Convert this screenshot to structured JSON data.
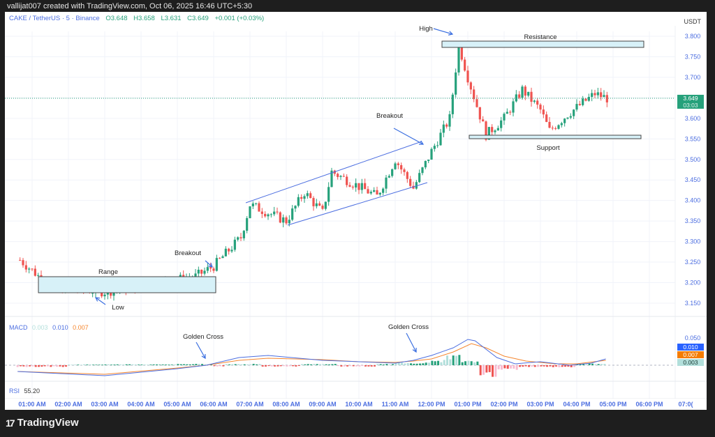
{
  "header": {
    "credit": "vallijat007 created with TradingView.com, Oct 06, 2025 16:46 UTC+5:30"
  },
  "symbol_legend": {
    "symbol": "CAKE / TetherUS · 5 · Binance",
    "open": "O3.648",
    "high": "H3.658",
    "low": "L3.631",
    "close": "C3.649",
    "change": "+0.001 (+0.03%)"
  },
  "price_axis": {
    "unit": "USDT",
    "labels": [
      "3.800",
      "3.750",
      "3.700",
      "3.650",
      "3.600",
      "3.550",
      "3.500",
      "3.450",
      "3.400",
      "3.350",
      "3.300",
      "3.250",
      "3.200",
      "3.150"
    ],
    "current_price": "3.649",
    "countdown": "03:03"
  },
  "macd": {
    "label": "MACD",
    "histogram": "0.003",
    "macd_value": "0.010",
    "signal_value": "0.007",
    "axis_label": "0.050",
    "tags": {
      "macd": "0.010",
      "signal": "0.007",
      "hist": "0.003"
    }
  },
  "rsi": {
    "label": "RSI",
    "value": "55.20"
  },
  "time_axis": [
    "01:00 AM",
    "02:00 AM",
    "03:00 AM",
    "04:00 AM",
    "05:00 AM",
    "06:00 AM",
    "07:00 AM",
    "08:00 AM",
    "09:00 AM",
    "10:00 AM",
    "11:00 AM",
    "12:00 PM",
    "01:00 PM",
    "02:00 PM",
    "03:00 PM",
    "04:00 PM",
    "05:00 PM",
    "06:00 PM",
    "07:0("
  ],
  "annotations": {
    "range": "Range",
    "low": "Low",
    "breakout_1": "Breakout",
    "breakout_2": "Breakout",
    "high": "High",
    "resistance": "Resistance",
    "support": "Support",
    "golden_cross_1": "Golden Cross",
    "golden_cross_2": "Golden Cross"
  },
  "brand": {
    "name": "TradingView",
    "logo": "17"
  },
  "colors": {
    "up": "#26a17b",
    "down": "#ef5350",
    "macd": "#4c6ee0",
    "signal": "#f5862e",
    "zone": "#d7f1f8"
  },
  "chart_data": {
    "type": "candlestick",
    "title": "CAKE / TetherUS · 5 · Binance",
    "ylabel": "USDT",
    "ylim": [
      3.13,
      3.82
    ],
    "x_ticks": [
      "01:00 AM",
      "02:00 AM",
      "03:00 AM",
      "04:00 AM",
      "05:00 AM",
      "06:00 AM",
      "07:00 AM",
      "08:00 AM",
      "09:00 AM",
      "10:00 AM",
      "11:00 AM",
      "12:00 PM",
      "01:00 PM",
      "02:00 PM",
      "03:00 PM",
      "04:00 PM",
      "05:00 PM",
      "06:00 PM"
    ],
    "key_levels": {
      "range_low": 3.175,
      "range_high": 3.215,
      "breakout_1_price": 3.24,
      "channel_start": [
        3.4,
        3.34
      ],
      "channel_end": [
        3.545,
        3.445
      ],
      "high": 3.795,
      "resistance_zone": [
        3.775,
        3.79
      ],
      "support_zone": [
        3.551,
        3.559
      ],
      "last_close": 3.649
    },
    "summary_path": [
      {
        "time": "00:40",
        "price": 3.255
      },
      {
        "time": "01:00",
        "price": 3.23
      },
      {
        "time": "01:30",
        "price": 3.19
      },
      {
        "time": "03:00",
        "price": 3.178
      },
      {
        "time": "04:30",
        "price": 3.2
      },
      {
        "time": "05:30",
        "price": 3.215
      },
      {
        "time": "06:00",
        "price": 3.24
      },
      {
        "time": "06:45",
        "price": 3.31
      },
      {
        "time": "07:00",
        "price": 3.39
      },
      {
        "time": "08:00",
        "price": 3.35
      },
      {
        "time": "08:30",
        "price": 3.42
      },
      {
        "time": "09:00",
        "price": 3.37
      },
      {
        "time": "09:15",
        "price": 3.47
      },
      {
        "time": "10:30",
        "price": 3.41
      },
      {
        "time": "11:00",
        "price": 3.5
      },
      {
        "time": "11:30",
        "price": 3.43
      },
      {
        "time": "12:00",
        "price": 3.52
      },
      {
        "time": "12:30",
        "price": 3.6
      },
      {
        "time": "12:45",
        "price": 3.78
      },
      {
        "time": "13:00",
        "price": 3.7
      },
      {
        "time": "13:30",
        "price": 3.56
      },
      {
        "time": "14:00",
        "price": 3.6
      },
      {
        "time": "14:30",
        "price": 3.67
      },
      {
        "time": "15:00",
        "price": 3.62
      },
      {
        "time": "15:15",
        "price": 3.57
      },
      {
        "time": "15:45",
        "price": 3.61
      },
      {
        "time": "16:30",
        "price": 3.66
      },
      {
        "time": "16:50",
        "price": 3.649
      }
    ],
    "macd_series": {
      "macd_peak": 0.075,
      "macd_trough": -0.02,
      "signal_peak": 0.07,
      "last_macd": 0.01,
      "last_signal": 0.007,
      "last_hist": 0.003
    },
    "rsi_last": 55.2
  }
}
